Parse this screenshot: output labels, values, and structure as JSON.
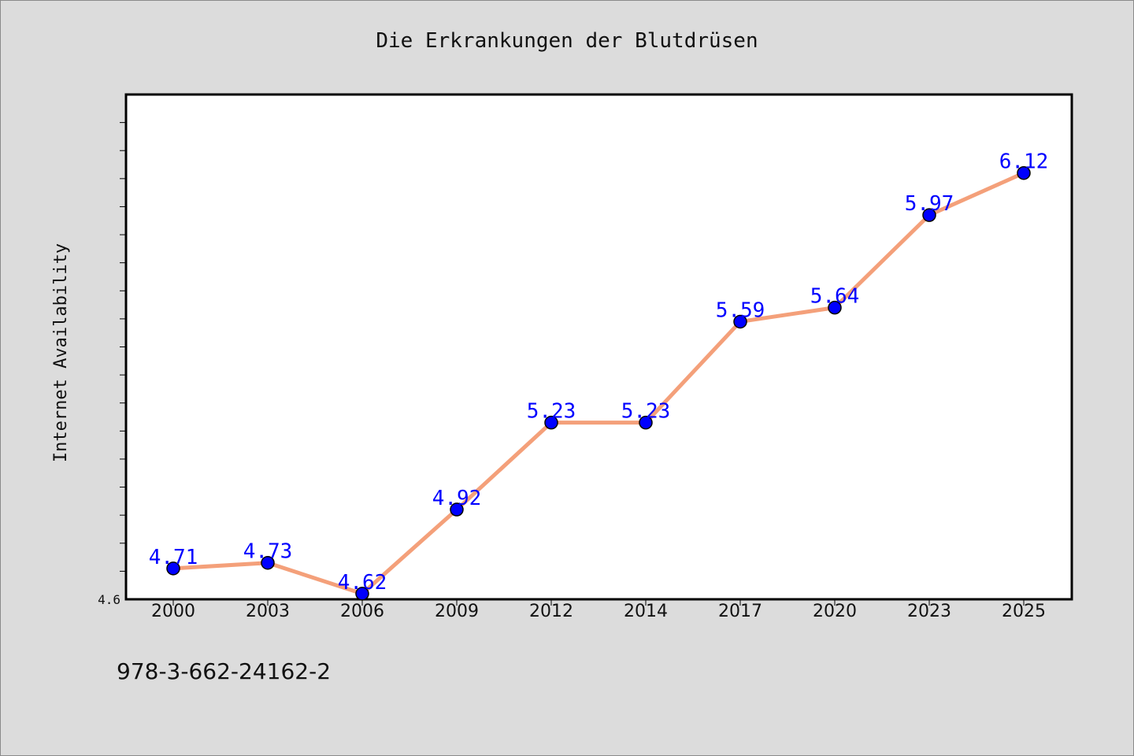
{
  "chart_data": {
    "type": "line",
    "title": "Die Erkrankungen der Blutdrüsen",
    "ylabel": "Internet Availability",
    "xlabel": "",
    "categories": [
      "2000",
      "2003",
      "2006",
      "2009",
      "2012",
      "2014",
      "2017",
      "2020",
      "2023",
      "2025"
    ],
    "series": [
      {
        "values": [
          4.71,
          4.73,
          4.62,
          4.92,
          5.23,
          5.23,
          5.59,
          5.64,
          5.97,
          6.12
        ]
      }
    ],
    "y_tick_labels": [
      "4.6"
    ],
    "ylim": [
      4.6,
      6.4
    ],
    "minor_tick_step": 0.1,
    "line_color": "#f4a07a",
    "marker_color": "#0000ff",
    "label_color": "#0000ff",
    "grid": false,
    "footnote": "978-3-662-24162-2"
  }
}
